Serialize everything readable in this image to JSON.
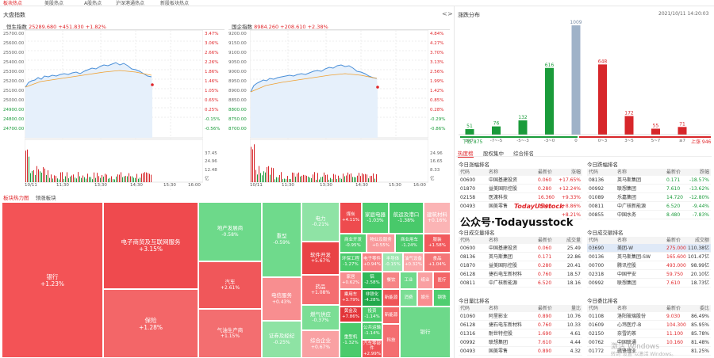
{
  "top_tabs": [
    "板块热点",
    "美股热点",
    "A股热点",
    "沪深港通热点",
    "新股板块热点"
  ],
  "left_panel": {
    "title": "大盘指数",
    "nav_prev": "<",
    "nav_next": ">",
    "indices": [
      {
        "name": "恒生指数",
        "value": "25289.680",
        "change": "+451.830",
        "pct": "+1.82%",
        "y_ticks": [
          "25700.00",
          "25600.00",
          "25500.00",
          "25400.00",
          "25300.00",
          "25200.00",
          "25100.00",
          "25000.00",
          "24900.00",
          "24800.00",
          "24700.00"
        ],
        "pct_ticks": [
          "3.47%",
          "3.06%",
          "2.66%",
          "2.26%",
          "1.86%",
          "1.46%",
          "1.05%",
          "0.65%",
          "0.25%",
          "-0.15%",
          "-0.56%"
        ],
        "vol_ticks": [
          "37.45",
          "24.96",
          "12.48",
          "亿"
        ],
        "time_ticks": [
          "10/11",
          "11:30",
          "13:30",
          "14:30",
          "15:30",
          "16:00"
        ]
      },
      {
        "name": "国企指数",
        "value": "8984.260",
        "change": "+208.610",
        "pct": "+2.38%",
        "y_ticks": [
          "9200.00",
          "9150.00",
          "9100.00",
          "9050.00",
          "9000.00",
          "8950.00",
          "8900.00",
          "8850.00",
          "8800.00",
          "8750.00",
          "8700.00"
        ],
        "pct_ticks": [
          "4.84%",
          "4.27%",
          "3.70%",
          "3.13%",
          "2.56%",
          "1.99%",
          "1.42%",
          "0.85%",
          "0.28%",
          "-0.29%",
          "-0.86%"
        ],
        "vol_ticks": [
          "24.96",
          "16.65",
          "8.33",
          "亿"
        ],
        "time_ticks": [
          "10/11",
          "11:30",
          "13:30",
          "14:30",
          "15:30",
          "16:00"
        ]
      }
    ],
    "sector_tabs": [
      "板块热力图",
      "领涨板块"
    ],
    "treemap": [
      {
        "name": "银行",
        "value": "+1.23%",
        "color": "#f35356"
      },
      {
        "name": "电子商贸及互联网服务",
        "value": "+3.15%",
        "color": "#ef4a4e"
      },
      {
        "name": "保险",
        "value": "+1.28%",
        "color": "#f36668"
      },
      {
        "name": "地产发展商",
        "value": "-0.58%",
        "color": "#6dd98a"
      },
      {
        "name": "汽车",
        "value": "+2.61%",
        "color": "#f0575a"
      },
      {
        "name": "气油生产商",
        "value": "+1.15%",
        "color": "#f36e70"
      },
      {
        "name": "重型",
        "value": "-0.59%",
        "color": "#6fda8c"
      },
      {
        "name": "电信服务",
        "value": "+0.43%",
        "color": "#f88e90"
      },
      {
        "name": "证券及经纪",
        "value": "-0.25%",
        "color": "#8ee3a4"
      },
      {
        "name": "电力",
        "value": "-0.21%",
        "color": "#8fe3a5"
      },
      {
        "name": "软件开发",
        "value": "+5.67%",
        "color": "#e94346"
      },
      {
        "name": "药品",
        "value": "+1.08%",
        "color": "#f46e71"
      },
      {
        "name": "燃气供应",
        "value": "-0.37%",
        "color": "#7bde95"
      },
      {
        "name": "综合企业",
        "value": "+0.67%",
        "color": "#f9a1a3"
      },
      {
        "name": "煤炭",
        "value": "+4.11%",
        "color": "#ee4b4e"
      },
      {
        "name": "家庭电器",
        "value": "-1.03%",
        "color": "#4fce70"
      },
      {
        "name": "航运及港口",
        "value": "-1.38%",
        "color": "#48c96a"
      },
      {
        "name": "建筑材料",
        "value": "+0.16%",
        "color": "#fbb4b5"
      },
      {
        "name": "商业开发",
        "value": "-0.95%",
        "color": "#55d074"
      },
      {
        "name": "物业及服务",
        "value": "+0.55%",
        "color": "#f99a9c"
      },
      {
        "name": "商业用车",
        "value": "-1.24%",
        "color": "#4ccb6d"
      },
      {
        "name": "服装",
        "value": "+1.58%",
        "color": "#f25a5d"
      },
      {
        "name": "环保工程",
        "value": "-1.27%",
        "color": "#4bcb6c"
      },
      {
        "name": "电子零件",
        "value": "+0.94%",
        "color": "#f78285"
      },
      {
        "name": "半导体",
        "value": "-0.15%",
        "color": "#9ce6b0"
      },
      {
        "name": "油气设备",
        "value": "+0.32%",
        "color": "#faa8aa"
      },
      {
        "name": "食品",
        "value": "+1.04%",
        "color": "#f57678"
      },
      {
        "name": "家居",
        "value": "+0.62%",
        "color": "#f88f91"
      },
      {
        "name": "铝",
        "value": "-2.58%",
        "color": "#2fb758"
      },
      {
        "name": "乘用车",
        "value": "+3.79%",
        "color": "#ec494c"
      },
      {
        "name": "非铁化",
        "value": "-4.28%",
        "color": "#22a84b"
      },
      {
        "name": "餐饮",
        "value": "",
        "color": "#f68486"
      },
      {
        "name": "工业",
        "value": "",
        "color": "#6fda8c"
      },
      {
        "name": "纸业",
        "value": "",
        "color": "#f9a0a2"
      },
      {
        "name": "医疗",
        "value": "",
        "color": "#f36668"
      },
      {
        "name": "黄金及",
        "value": "+7.86%",
        "color": "#e23438"
      },
      {
        "name": "投资",
        "value": "-1.14%",
        "color": "#4dcc6e"
      },
      {
        "name": "新能源",
        "value": "",
        "color": "#ef5558"
      },
      {
        "name": "重型机",
        "value": "-1.32%",
        "color": "#4bcb6c"
      },
      {
        "name": "公共运输",
        "value": "-1.14%",
        "color": "#4dcc6e"
      },
      {
        "name": "汽车零部件",
        "value": "+2.99%",
        "color": "#ef5356"
      },
      {
        "name": "新能源",
        "value": "",
        "color": "#f36668"
      },
      {
        "name": "消费",
        "value": "",
        "color": "#7bde95"
      },
      {
        "name": "娱乐",
        "value": "",
        "color": "#f88e90"
      },
      {
        "name": "钢铁",
        "value": "",
        "color": "#4fce70"
      },
      {
        "name": "科技",
        "value": "",
        "color": "#f46e71"
      },
      {
        "name": "银行",
        "value": "",
        "color": "#6dd98a"
      }
    ]
  },
  "right_panel": {
    "title": "涨跌分布",
    "datetime": "2021/10/11 14:20:03",
    "chart_data": {
      "type": "bar",
      "categories": [
        "≤-7",
        "-7~-5",
        "-5~-3",
        "-3~0",
        "0",
        "0~3",
        "3~5",
        "5~7",
        "≥7"
      ],
      "values": [
        51,
        76,
        132,
        616,
        1009,
        648,
        172,
        55,
        71
      ],
      "colors": [
        "#1a9b3a",
        "#1a9b3a",
        "#1a9b3a",
        "#1a9b3a",
        "#9fb2c8",
        "#d7262a",
        "#d7262a",
        "#d7262a",
        "#d7262a"
      ]
    },
    "down_label": "下跌 875",
    "up_label": "上涨 946",
    "tabs": [
      "热度榜",
      "股权集中",
      "综合排名"
    ],
    "tables": [
      {
        "title": "今日涨幅排名",
        "headers": [
          "代码",
          "名称",
          "最新价",
          "涨幅"
        ],
        "rows": [
          [
            "00600",
            "中国基建投资",
            "0.060",
            "+17.65%"
          ],
          [
            "01870",
            "益美国际控股",
            "0.280",
            "+12.24%"
          ],
          [
            "02158",
            "医渡科技",
            "16.360",
            "+9.33%"
          ],
          [
            "00493",
            "国美零售",
            "0.890",
            "+8.86%"
          ],
          [
            "",
            "",
            "",
            "+8.21%"
          ]
        ]
      },
      {
        "title": "今日跌幅排名",
        "headers": [
          "代码",
          "名称",
          "最新价",
          "跌幅"
        ],
        "rows": [
          [
            "08136",
            "英马斯集团",
            "0.171",
            "-18.57%"
          ],
          [
            "00992",
            "联想集团",
            "7.610",
            "-13.62%"
          ],
          [
            "01089",
            "乐嘉集团",
            "14.720",
            "-12.80%"
          ],
          [
            "00811",
            "中广核新能源",
            "6.520",
            "-9.44%"
          ],
          [
            "00855",
            "中国水务",
            "8.480",
            "-7.83%"
          ]
        ]
      },
      {
        "title": "今日成交量排名",
        "headers": [
          "代码",
          "名称",
          "最新价",
          "成交量"
        ],
        "rows": [
          [
            "00600",
            "中国基建投资",
            "0.060",
            "25.49"
          ],
          [
            "08136",
            "英马斯集团",
            "0.171",
            "22.86"
          ],
          [
            "01870",
            "益美国际控股",
            "0.280",
            "20.41"
          ],
          [
            "06128",
            "捷石电车新材料",
            "0.760",
            "18.57"
          ],
          [
            "00811",
            "中广核新能源",
            "6.520",
            "18.16"
          ]
        ]
      },
      {
        "title": "今日成交额排名",
        "headers": [
          "代码",
          "名称",
          "最新价",
          "成交额"
        ],
        "rows": [
          [
            "03690",
            "美团-W",
            "275.000",
            "110.38亿"
          ],
          [
            "00136",
            "英马斯集团-SW",
            "165.600",
            "101.47亿"
          ],
          [
            "00700",
            "腾讯控股",
            "493.000",
            "98.99亿"
          ],
          [
            "02318",
            "中国平安",
            "59.750",
            "20.10亿"
          ],
          [
            "00992",
            "联想集团",
            "7.610",
            "18.73亿"
          ]
        ]
      },
      {
        "title": "今日量比排名",
        "headers": [
          "代码",
          "名称",
          "最新价",
          "量比"
        ],
        "rows": [
          [
            "01060",
            "阿里影业",
            "0.890",
            "10.76"
          ],
          [
            "06128",
            "捷石电车新材料",
            "0.760",
            "10.33"
          ],
          [
            "01316",
            "耐世特控股",
            "1.690",
            "4.61"
          ],
          [
            "00992",
            "联想集团",
            "7.610",
            "4.44"
          ],
          [
            "00493",
            "国美零售",
            "0.890",
            "4.32"
          ]
        ]
      },
      {
        "title": "今日委比排名",
        "headers": [
          "代码",
          "名称",
          "最新价",
          "委比"
        ],
        "rows": [
          [
            "01108",
            "洛阳玻璃股份",
            "9.030",
            "86.49%"
          ],
          [
            "01609",
            "心玮医疗-B",
            "104.300",
            "85.95%"
          ],
          [
            "02150",
            "奈雪的茶",
            "11.100",
            "85.78%"
          ],
          [
            "00762",
            "中国联通",
            "10.160",
            "81.48%"
          ],
          [
            "01772",
            "赣锋锂业",
            "",
            "81.25%"
          ]
        ]
      }
    ],
    "watermark_small": "TodayUSstock",
    "watermark_large": "公众号·Todayusstock",
    "os_watermark_1": "激活 Windows",
    "os_watermark_2": "转到\"设置\"以激活 Windows。"
  }
}
